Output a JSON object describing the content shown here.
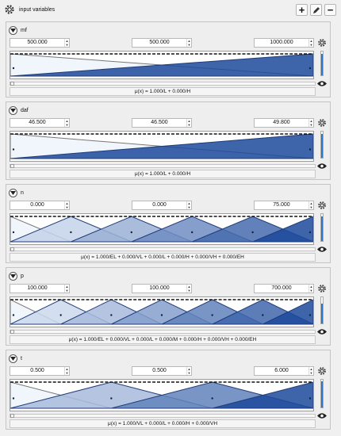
{
  "window": {
    "title": "input variables"
  },
  "toolbar": {
    "add_label": "+",
    "edit_icon": "pencil-icon",
    "remove_label": "−"
  },
  "colors": {
    "accent": "#2d77c7",
    "membership_dark": "#1a3f86",
    "membership_light": "#eef3fb"
  },
  "variables": [
    {
      "name": "mf",
      "min": "500.000",
      "value": "500.000",
      "max": "1000.000",
      "formula": "μ(x) = 1.000/L + 0.000/H",
      "sets": 2,
      "level": 0.9
    },
    {
      "name": "daf",
      "min": "46.500",
      "value": "46.500",
      "max": "49.800",
      "formula": "μ(x) = 1.000/L + 0.000/H",
      "sets": 2,
      "level": 0.9
    },
    {
      "name": "n",
      "min": "0.000",
      "value": "0.000",
      "max": "75.000",
      "formula": "μ(x) = 1.000/EL + 0.000/VL + 0.000/L + 0.000/H + 0.000/VH + 0.000/EH",
      "sets": 6,
      "level": 0.9
    },
    {
      "name": "p",
      "min": "100.000",
      "value": "100.000",
      "max": "700.000",
      "formula": "μ(x) = 1.000/EL + 0.000/VL + 0.000/L + 0.000/M + 0.000/H + 0.000/VH + 0.000/EH",
      "sets": 7,
      "level": 0.75
    },
    {
      "name": "t",
      "min": "0.500",
      "value": "0.500",
      "max": "6.000",
      "formula": "μ(x) = 1.000/VL + 0.000/L + 0.000/H + 0.000/VH",
      "sets": 4,
      "level": 0.95
    }
  ]
}
